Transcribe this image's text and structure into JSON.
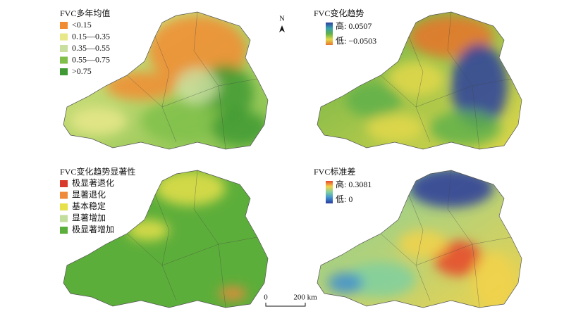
{
  "north": "N",
  "scale": {
    "start": "0",
    "end": "200 km"
  },
  "panels": [
    {
      "title": "FVC多年均值",
      "legend": [
        {
          "label": "<0.15",
          "color": "#f28c32"
        },
        {
          "label": "0.15—0.35",
          "color": "#e8e88a"
        },
        {
          "label": "0.35—0.55",
          "color": "#c9dfa0"
        },
        {
          "label": "0.55—0.75",
          "color": "#7fbf4a"
        },
        {
          "label": ">0.75",
          "color": "#3f9a33"
        }
      ]
    },
    {
      "title": "FVC变化趋势",
      "high": "高: 0.0507",
      "low": "低: −0.0503",
      "ramp": [
        "#2b3f9e",
        "#3aa0b0",
        "#5fb04a",
        "#e3d84a",
        "#e8742c"
      ]
    },
    {
      "title": "FVC变化趋势显著性",
      "legend": [
        {
          "label": "极显著退化",
          "color": "#d93a2b"
        },
        {
          "label": "显著退化",
          "color": "#ef8a3c"
        },
        {
          "label": "基本稳定",
          "color": "#e6e04a"
        },
        {
          "label": "显著增加",
          "color": "#c2de9c"
        },
        {
          "label": "极显著增加",
          "color": "#5cae3a"
        }
      ]
    },
    {
      "title": "FVC标准差",
      "high": "高: 0.3081",
      "low": "低: 0",
      "ramp": [
        "#e8452c",
        "#f2d24a",
        "#7fd0a0",
        "#3f8fd0",
        "#2a3a9a"
      ]
    }
  ]
}
